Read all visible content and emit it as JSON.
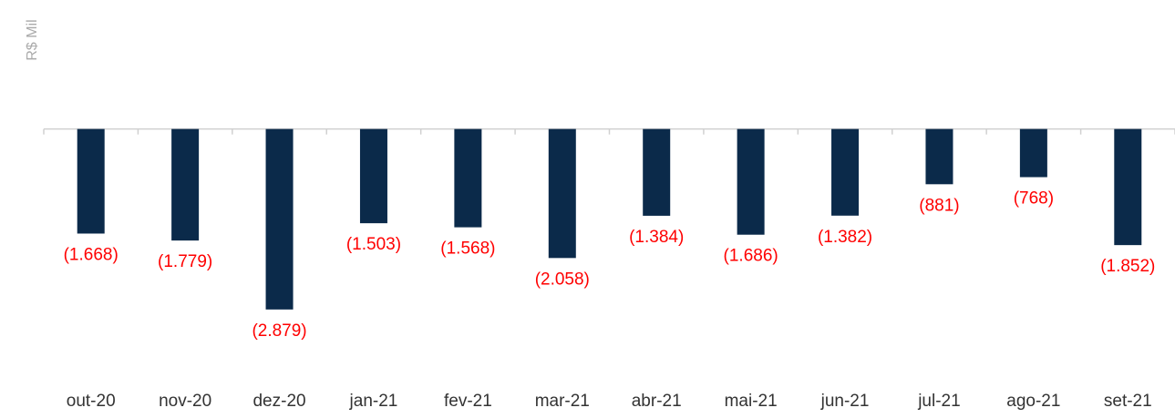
{
  "chart_data": {
    "type": "bar",
    "y_label": "R$ Mil",
    "categories": [
      "out-20",
      "nov-20",
      "dez-20",
      "jan-21",
      "fev-21",
      "mar-21",
      "abr-21",
      "mai-21",
      "jun-21",
      "jul-21",
      "ago-21",
      "set-21"
    ],
    "values": [
      -1668,
      -1779,
      -2879,
      -1503,
      -1568,
      -2058,
      -1384,
      -1686,
      -1382,
      -881,
      -768,
      -1852
    ],
    "value_labels": [
      "(1.668)",
      "(1.779)",
      "(2.879)",
      "(1.503)",
      "(1.568)",
      "(2.058)",
      "(1.384)",
      "(1.686)",
      "(1.382)",
      "(881)",
      "(768)",
      "(1.852)"
    ],
    "color": "#0b2a4a",
    "label_color": "#ff0000",
    "ylim": [
      -4000,
      2000
    ]
  }
}
